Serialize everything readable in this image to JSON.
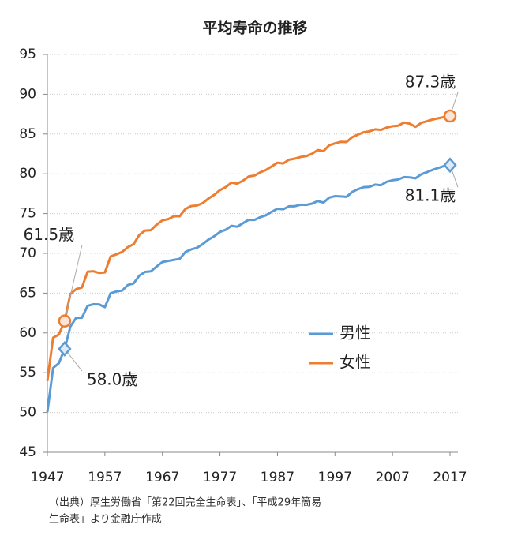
{
  "chart_data": {
    "type": "line",
    "title": "平均寿命の推移",
    "x": [
      1947,
      1948,
      1949,
      1950,
      1951,
      1952,
      1953,
      1954,
      1955,
      1956,
      1957,
      1958,
      1959,
      1960,
      1961,
      1962,
      1963,
      1964,
      1965,
      1966,
      1967,
      1968,
      1969,
      1970,
      1971,
      1972,
      1973,
      1974,
      1975,
      1976,
      1977,
      1978,
      1979,
      1980,
      1981,
      1982,
      1983,
      1984,
      1985,
      1986,
      1987,
      1988,
      1989,
      1990,
      1991,
      1992,
      1993,
      1994,
      1995,
      1996,
      1997,
      1998,
      1999,
      2000,
      2001,
      2002,
      2003,
      2004,
      2005,
      2006,
      2007,
      2008,
      2009,
      2010,
      2011,
      2012,
      2013,
      2014,
      2015,
      2016,
      2017
    ],
    "series": [
      {
        "name": "男性",
        "color": "#5b9bd5",
        "marker": "diamond",
        "values": [
          50.06,
          55.6,
          56.2,
          58.0,
          60.8,
          61.9,
          61.9,
          63.41,
          63.6,
          63.59,
          63.24,
          64.98,
          65.21,
          65.32,
          66.03,
          66.23,
          67.21,
          67.67,
          67.74,
          68.35,
          68.91,
          69.05,
          69.18,
          69.31,
          70.17,
          70.5,
          70.7,
          71.16,
          71.73,
          72.15,
          72.69,
          72.97,
          73.46,
          73.35,
          73.79,
          74.22,
          74.2,
          74.54,
          74.78,
          75.23,
          75.61,
          75.54,
          75.91,
          75.92,
          76.11,
          76.09,
          76.25,
          76.57,
          76.38,
          77.01,
          77.19,
          77.16,
          77.1,
          77.72,
          78.07,
          78.32,
          78.36,
          78.64,
          78.56,
          79.0,
          79.19,
          79.29,
          79.59,
          79.55,
          79.44,
          79.94,
          80.21,
          80.5,
          80.75,
          80.98,
          81.09
        ],
        "value_labels": [
          null,
          null,
          null,
          "58.0歳",
          null,
          null,
          null,
          null,
          null,
          null,
          null,
          null,
          null,
          null,
          null,
          null,
          null,
          null,
          null,
          null,
          null,
          null,
          null,
          null,
          null,
          null,
          null,
          null,
          null,
          null,
          null,
          null,
          null,
          null,
          null,
          null,
          null,
          null,
          null,
          null,
          null,
          null,
          null,
          null,
          null,
          null,
          null,
          null,
          null,
          null,
          null,
          null,
          null,
          null,
          null,
          null,
          null,
          null,
          null,
          null,
          null,
          null,
          null,
          null,
          null,
          null,
          null,
          null,
          null,
          null,
          "81.1歳"
        ]
      },
      {
        "name": "女性",
        "color": "#ed7d31",
        "marker": "circle",
        "values": [
          53.96,
          59.4,
          59.8,
          61.5,
          64.9,
          65.5,
          65.7,
          67.69,
          67.75,
          67.54,
          67.6,
          69.61,
          69.88,
          70.19,
          70.79,
          71.16,
          72.34,
          72.87,
          72.92,
          73.61,
          74.15,
          74.3,
          74.67,
          74.66,
          75.58,
          75.94,
          76.02,
          76.31,
          76.89,
          77.35,
          77.95,
          78.33,
          78.89,
          78.76,
          79.13,
          79.66,
          79.78,
          80.18,
          80.48,
          80.93,
          81.39,
          81.3,
          81.77,
          81.9,
          82.11,
          82.22,
          82.51,
          82.98,
          82.85,
          83.59,
          83.82,
          84.01,
          83.99,
          84.6,
          84.93,
          85.23,
          85.33,
          85.59,
          85.52,
          85.81,
          85.99,
          86.05,
          86.44,
          86.3,
          85.9,
          86.41,
          86.61,
          86.83,
          86.99,
          87.14,
          87.26
        ],
        "value_labels": [
          null,
          null,
          null,
          "61.5歳",
          null,
          null,
          null,
          null,
          null,
          null,
          null,
          null,
          null,
          null,
          null,
          null,
          null,
          null,
          null,
          null,
          null,
          null,
          null,
          null,
          null,
          null,
          null,
          null,
          null,
          null,
          null,
          null,
          null,
          null,
          null,
          null,
          null,
          null,
          null,
          null,
          null,
          null,
          null,
          null,
          null,
          null,
          null,
          null,
          null,
          null,
          null,
          null,
          null,
          null,
          null,
          null,
          null,
          null,
          null,
          null,
          null,
          null,
          null,
          null,
          null,
          null,
          null,
          null,
          null,
          null,
          "87.3歳"
        ]
      }
    ],
    "xlim": [
      1947,
      2017
    ],
    "xticks": [
      1947,
      1957,
      1967,
      1977,
      1987,
      1997,
      2007,
      2017
    ],
    "ylim": [
      45,
      95
    ],
    "yticks": [
      45,
      50,
      55,
      60,
      65,
      70,
      75,
      80,
      85,
      90,
      95
    ],
    "grid": true,
    "note": [
      "（出典）厚生労働省「第22回完全生命表」、「平成29年簡易",
      "生命表」より金融庁作成"
    ]
  }
}
